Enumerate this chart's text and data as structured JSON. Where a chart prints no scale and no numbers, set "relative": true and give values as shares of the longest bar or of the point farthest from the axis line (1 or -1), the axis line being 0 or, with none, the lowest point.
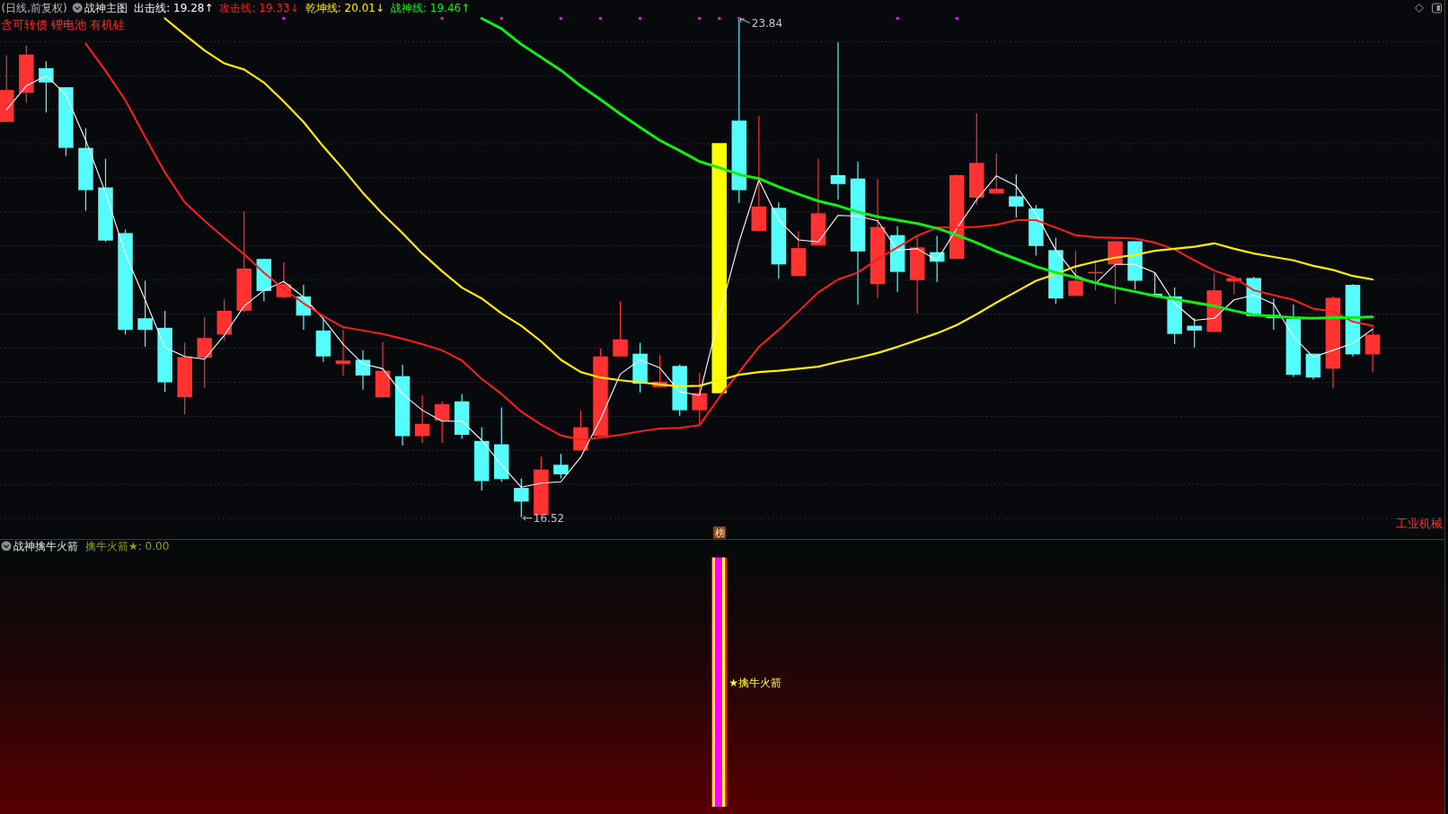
{
  "chart_data": [
    {
      "type": "candlestick",
      "subtitle": "(日线,前复权)",
      "title": "战神主图",
      "legend": "top left",
      "grid": "y",
      "categories": [
        null,
        null,
        null,
        null,
        null,
        null,
        null,
        null,
        null,
        null,
        null,
        null,
        null,
        null,
        null,
        null,
        null,
        null,
        null,
        null,
        null,
        null,
        null,
        null,
        null,
        null,
        null,
        null,
        null,
        null,
        null,
        null,
        null,
        null,
        null,
        null,
        null,
        null,
        null,
        null,
        null,
        null,
        null,
        null,
        null,
        null,
        null,
        null,
        null,
        null,
        null,
        null,
        null,
        null,
        null,
        null,
        null,
        null,
        null,
        null,
        null,
        null,
        null,
        null,
        null,
        null,
        null,
        null,
        null,
        null
      ],
      "yticks": [
        {
          "value": 16.5,
          "label": null
        },
        {
          "value": 17,
          "label": null
        },
        {
          "value": 17.5,
          "label": null
        },
        {
          "value": 18,
          "label": null
        },
        {
          "value": 18.5,
          "label": null
        },
        {
          "value": 19,
          "label": null
        },
        {
          "value": 19.5,
          "label": null
        },
        {
          "value": 20,
          "label": null
        },
        {
          "value": 20.5,
          "label": null
        },
        {
          "value": 21,
          "label": null
        },
        {
          "value": 21.5,
          "label": null
        },
        {
          "value": 22,
          "label": null
        },
        {
          "value": 22.5,
          "label": null
        },
        {
          "value": 23,
          "label": null
        },
        {
          "value": 23.5,
          "label": null
        }
      ],
      "ohlc": [
        [
          22.32,
          23.3,
          22.32,
          22.79
        ],
        [
          22.75,
          23.44,
          22.6,
          23.31
        ],
        [
          23.11,
          23.21,
          22.46,
          22.9
        ],
        [
          22.83,
          22.83,
          21.82,
          21.94
        ],
        [
          21.94,
          22.23,
          21.02,
          21.32
        ],
        [
          21.36,
          21.78,
          20.56,
          20.58
        ],
        [
          20.69,
          20.74,
          19.2,
          19.27
        ],
        [
          19.44,
          19.99,
          19.02,
          19.27
        ],
        [
          19.3,
          19.55,
          18.36,
          18.5
        ],
        [
          18.28,
          19.08,
          18.03,
          18.87
        ],
        [
          18.86,
          19.46,
          18.42,
          19.15
        ],
        [
          19.2,
          19.72,
          19.11,
          19.55
        ],
        [
          19.55,
          21.01,
          19.53,
          20.17
        ],
        [
          20.31,
          20.31,
          19.69,
          19.84
        ],
        [
          19.75,
          20.26,
          19.73,
          19.94
        ],
        [
          19.76,
          19.93,
          19.27,
          19.48
        ],
        [
          19.26,
          19.44,
          18.8,
          18.88
        ],
        [
          18.77,
          19.27,
          18.6,
          18.82
        ],
        [
          18.83,
          18.97,
          18.39,
          18.6
        ],
        [
          18.28,
          19.09,
          18.28,
          18.67
        ],
        [
          18.59,
          18.76,
          17.57,
          17.71
        ],
        [
          17.71,
          18.31,
          17.61,
          17.89
        ],
        [
          17.94,
          18.22,
          17.61,
          18.18
        ],
        [
          18.22,
          18.33,
          17.67,
          17.73
        ],
        [
          17.64,
          17.84,
          16.91,
          17.05
        ],
        [
          17.59,
          18.13,
          17.04,
          17.08
        ],
        [
          16.95,
          17.09,
          16.52,
          16.75
        ],
        [
          16.55,
          17.41,
          16.55,
          17.22
        ],
        [
          17.29,
          17.45,
          17.09,
          17.15
        ],
        [
          17.5,
          18.09,
          17.5,
          17.84
        ],
        [
          17.71,
          19.0,
          17.71,
          18.88
        ],
        [
          18.88,
          19.69,
          18.88,
          19.13
        ],
        [
          18.92,
          19.08,
          18.35,
          18.48
        ],
        [
          18.43,
          18.9,
          18.43,
          18.51
        ],
        [
          18.74,
          18.76,
          18.01,
          18.09
        ],
        [
          18.09,
          18.64,
          17.89,
          18.34
        ],
        [
          18.34,
          22.01,
          18.34,
          22.01
        ],
        [
          22.34,
          23.84,
          21.13,
          21.32
        ],
        [
          20.72,
          22.41,
          20.72,
          21.08
        ],
        [
          21.06,
          21.14,
          20.02,
          20.23
        ],
        [
          20.06,
          20.72,
          20.06,
          20.47
        ],
        [
          20.51,
          21.78,
          20.51,
          20.98
        ],
        [
          21.54,
          23.49,
          21.18,
          21.41
        ],
        [
          21.49,
          21.74,
          19.64,
          20.42
        ],
        [
          19.94,
          21.48,
          19.74,
          20.78
        ],
        [
          20.66,
          20.79,
          19.83,
          20.12
        ],
        [
          20.0,
          20.66,
          19.51,
          20.48
        ],
        [
          20.41,
          20.65,
          19.97,
          20.27
        ],
        [
          20.31,
          21.55,
          20.31,
          21.54
        ],
        [
          21.21,
          22.45,
          21.11,
          21.72
        ],
        [
          21.27,
          21.86,
          21.27,
          21.34
        ],
        [
          21.23,
          21.55,
          20.92,
          21.08
        ],
        [
          21.05,
          21.1,
          20.36,
          20.5
        ],
        [
          20.44,
          20.62,
          19.65,
          19.73
        ],
        [
          19.77,
          20.43,
          19.77,
          19.99
        ],
        [
          20.11,
          20.29,
          19.85,
          20.12
        ],
        [
          20.23,
          20.57,
          19.65,
          20.57
        ],
        [
          20.57,
          20.57,
          19.86,
          19.99
        ],
        [
          19.8,
          20.11,
          19.77,
          19.77
        ],
        [
          19.76,
          19.89,
          19.06,
          19.21
        ],
        [
          19.33,
          19.44,
          19.01,
          19.26
        ],
        [
          19.24,
          20.1,
          19.24,
          19.85
        ],
        [
          19.98,
          20.06,
          19.79,
          20.03
        ],
        [
          20.03,
          20.05,
          19.46,
          19.47
        ],
        [
          19.49,
          19.73,
          19.27,
          19.44
        ],
        [
          19.43,
          19.64,
          18.58,
          18.61
        ],
        [
          18.92,
          18.92,
          18.54,
          18.57
        ],
        [
          18.7,
          19.76,
          18.41,
          19.74
        ],
        [
          19.93,
          19.94,
          18.88,
          18.91
        ],
        [
          18.91,
          19.32,
          18.65,
          19.2
        ]
      ],
      "colors": [
        "#ff3232",
        "#ff3232",
        "#54fcfc",
        "#54fcfc",
        "#54fcfc",
        "#54fcfc",
        "#54fcfc",
        "#54fcfc",
        "#54fcfc",
        "#ff3232",
        "#ff3232",
        "#ff3232",
        "#ff3232",
        "#54fcfc",
        "#ff3232",
        "#54fcfc",
        "#54fcfc",
        "#ff3232",
        "#54fcfc",
        "#ff3232",
        "#54fcfc",
        "#ff3232",
        "#ff3232",
        "#54fcfc",
        "#54fcfc",
        "#54fcfc",
        "#54fcfc",
        "#ff3232",
        "#54fcfc",
        "#ff3232",
        "#ff3232",
        "#ff3232",
        "#54fcfc",
        "#ff3232",
        "#54fcfc",
        "#ff3232",
        "#ffff00",
        "#54fcfc",
        "#ff3232",
        "#54fcfc",
        "#ff3232",
        "#ff3232",
        "#54fcfc",
        "#54fcfc",
        "#ff3232",
        "#54fcfc",
        "#ff3232",
        "#54fcfc",
        "#ff3232",
        "#ff3232",
        "#ff3232",
        "#54fcfc",
        "#54fcfc",
        "#54fcfc",
        "#ff3232",
        "#ff3232",
        "#ff3232",
        "#54fcfc",
        "#54fcfc",
        "#54fcfc",
        "#54fcfc",
        "#ff3232",
        "#ff3232",
        "#54fcfc",
        "#54fcfc",
        "#54fcfc",
        "#54fcfc",
        "#ff3232",
        "#54fcfc",
        "#ff3232"
      ],
      "series": [
        {
          "name": "出击线: 19.28↑",
          "type": "line",
          "color": "#ffffff",
          "values": [
            22.5,
            22.85,
            23.0,
            22.72,
            22.05,
            21.28,
            20.39,
            19.71,
            19.01,
            18.88,
            18.84,
            19.19,
            19.62,
            19.85,
            19.98,
            19.75,
            19.43,
            19.06,
            18.77,
            18.7,
            18.33,
            18.09,
            17.93,
            17.93,
            17.65,
            17.29,
            16.96,
            17.02,
            17.04,
            17.4,
            17.96,
            18.62,
            18.83,
            18.71,
            18.36,
            18.31,
            19.48,
            20.56,
            21.47,
            20.88,
            20.59,
            20.56,
            20.95,
            20.94,
            20.87,
            20.44,
            20.46,
            20.29,
            20.76,
            21.18,
            21.53,
            21.38,
            20.97,
            20.44,
            20.07,
            19.95,
            20.23,
            20.23,
            20.11,
            19.66,
            19.41,
            19.44,
            19.71,
            19.78,
            19.65,
            19.17,
            18.87,
            18.97,
            19.07,
            19.28
          ]
        },
        {
          "name": "攻击线: 19.33↓",
          "type": "line",
          "color": "#ff1e1e",
          "values": [
            null,
            null,
            null,
            null,
            23.47,
            23.07,
            22.64,
            22.1,
            21.58,
            21.14,
            20.87,
            20.62,
            20.38,
            20.11,
            19.87,
            19.66,
            19.47,
            19.31,
            19.26,
            19.21,
            19.14,
            19.06,
            18.97,
            18.82,
            18.55,
            18.33,
            18.07,
            17.88,
            17.72,
            17.66,
            17.69,
            17.73,
            17.78,
            17.82,
            17.83,
            17.87,
            18.28,
            18.65,
            19.02,
            19.27,
            19.54,
            19.82,
            20.01,
            20.11,
            20.31,
            20.48,
            20.65,
            20.77,
            20.77,
            20.78,
            20.81,
            20.88,
            20.88,
            20.77,
            20.66,
            20.63,
            20.62,
            20.61,
            20.55,
            20.45,
            20.29,
            20.14,
            20.04,
            19.85,
            19.78,
            19.71,
            19.58,
            19.54,
            19.39,
            19.33
          ]
        },
        {
          "name": "乾坤线: 20.01↓",
          "type": "line",
          "color": "#ffee00",
          "values": [
            null,
            null,
            null,
            null,
            null,
            null,
            null,
            null,
            23.84,
            23.6,
            23.37,
            23.18,
            23.09,
            22.9,
            22.62,
            22.32,
            21.96,
            21.63,
            21.28,
            20.97,
            20.69,
            20.39,
            20.13,
            19.89,
            19.73,
            19.51,
            19.33,
            19.1,
            18.83,
            18.65,
            18.57,
            18.53,
            18.5,
            18.47,
            18.44,
            18.45,
            18.53,
            18.61,
            18.65,
            18.67,
            18.7,
            18.73,
            18.8,
            18.86,
            18.93,
            19.02,
            19.12,
            19.22,
            19.34,
            19.5,
            19.67,
            19.83,
            19.99,
            20.09,
            20.2,
            20.27,
            20.33,
            20.37,
            20.43,
            20.46,
            20.49,
            20.54,
            20.46,
            20.39,
            20.34,
            20.29,
            20.21,
            20.15,
            20.06,
            20.01
          ]
        },
        {
          "name": "战神线: 19.46↑",
          "type": "line",
          "color": "#11ee11",
          "values": [
            null,
            null,
            null,
            null,
            null,
            null,
            null,
            null,
            null,
            null,
            null,
            null,
            null,
            null,
            null,
            null,
            null,
            null,
            null,
            null,
            null,
            null,
            null,
            null,
            23.84,
            23.69,
            23.46,
            23.27,
            23.08,
            22.85,
            22.65,
            22.44,
            22.24,
            22.05,
            21.9,
            21.74,
            21.65,
            21.55,
            21.49,
            21.37,
            21.26,
            21.16,
            21.09,
            21.0,
            20.93,
            20.88,
            20.83,
            20.76,
            20.66,
            20.55,
            20.42,
            20.31,
            20.2,
            20.11,
            20.04,
            19.96,
            19.89,
            19.83,
            19.77,
            19.72,
            19.67,
            19.62,
            19.55,
            19.49,
            19.47,
            19.45,
            19.44,
            19.45,
            19.45,
            19.46
          ]
        },
        {
          "type": "scatter",
          "marker": "square",
          "color": "#ff00ff",
          "values": [
            null,
            null,
            null,
            null,
            null,
            null,
            null,
            null,
            null,
            null,
            null,
            null,
            null,
            null,
            23.84,
            null,
            null,
            null,
            null,
            null,
            null,
            null,
            23.84,
            null,
            null,
            23.84,
            null,
            null,
            23.84,
            null,
            23.84,
            null,
            23.84,
            null,
            null,
            23.84,
            23.84,
            23.84,
            null,
            null,
            null,
            null,
            null,
            null,
            null,
            23.84,
            null,
            null,
            23.84,
            null,
            null,
            null,
            null,
            null,
            null,
            null,
            null,
            null,
            null,
            null,
            null,
            null,
            null,
            null,
            null,
            null,
            null,
            null,
            null,
            null
          ]
        }
      ],
      "annotations": [
        "含可转债 锂电池 有机硅",
        "榜",
        "工业机械",
        "23.84",
        "16.52"
      ]
    },
    {
      "type": "bar",
      "title": "战神擒牛火箭",
      "relative": true,
      "categories": [
        null,
        null,
        null,
        null,
        null,
        null,
        null,
        null,
        null,
        null,
        null,
        null,
        null,
        null,
        null,
        null,
        null,
        null,
        null,
        null,
        null,
        null,
        null,
        null,
        null,
        null,
        null,
        null,
        null,
        null,
        null,
        null,
        null,
        null,
        null,
        null,
        null,
        null,
        null,
        null,
        null,
        null,
        null,
        null,
        null,
        null,
        null,
        null,
        null,
        null,
        null,
        null,
        null,
        null,
        null,
        null,
        null,
        null,
        null,
        null,
        null,
        null,
        null,
        null,
        null,
        null,
        null,
        null,
        null,
        null
      ],
      "series": [
        {
          "name": "★擒牛火箭",
          "color": "#ff00ff",
          "values": [
            null,
            null,
            null,
            null,
            null,
            null,
            null,
            null,
            null,
            null,
            null,
            null,
            null,
            null,
            null,
            null,
            null,
            null,
            null,
            null,
            null,
            null,
            null,
            null,
            null,
            null,
            null,
            null,
            null,
            null,
            null,
            null,
            null,
            null,
            null,
            null,
            1,
            null,
            null,
            null,
            null,
            null,
            null,
            null,
            null,
            null,
            null,
            null,
            null,
            null,
            null,
            null,
            null,
            null,
            null,
            null,
            null,
            null,
            null,
            null,
            null,
            null,
            null,
            null,
            null,
            null,
            null,
            null,
            null,
            null
          ]
        }
      ],
      "annotations": [
        "擒牛火箭★: 0.00"
      ]
    }
  ]
}
